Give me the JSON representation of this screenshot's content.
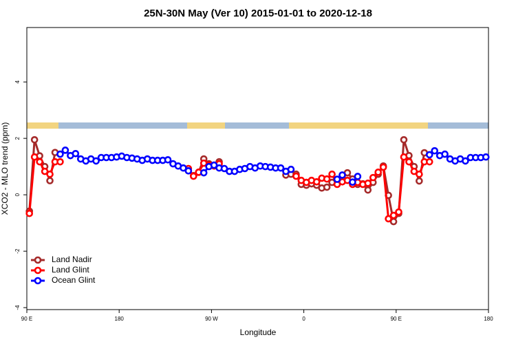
{
  "chart_data": {
    "type": "line",
    "title": "25N-30N May (Ver 10)   2015-01-01 to 2020-12-18",
    "x_label": "Longitude",
    "y_label": "XCO2 - MLO trend (ppm)",
    "xlim": [
      90,
      540
    ],
    "ylim": [
      -4.07,
      5.93
    ],
    "xticks": [
      {
        "value": 90,
        "label": "90 E"
      },
      180,
      {
        "value": 270,
        "label": "90 W"
      },
      {
        "value": 360,
        "label": "0"
      },
      {
        "value": 450,
        "label": "90 E"
      },
      {
        "value": 540,
        "label": "180"
      }
    ],
    "yticks": [
      -4,
      -2,
      0,
      2,
      4
    ],
    "legend": "lower left",
    "x": [
      92.5,
      97.5,
      102.5,
      107.5,
      112.5,
      117.5,
      122.5,
      127.5,
      132.5,
      137.5,
      142.5,
      147.5,
      152.5,
      157.5,
      162.5,
      167.5,
      172.5,
      177.5,
      182.5,
      187.5,
      192.5,
      197.5,
      202.5,
      207.5,
      212.5,
      217.5,
      222.5,
      227.5,
      232.5,
      237.5,
      242.5,
      247.5,
      252.5,
      257.5,
      262.5,
      267.5,
      272.5,
      277.5,
      282.5,
      287.5,
      292.5,
      297.5,
      302.5,
      307.5,
      312.5,
      317.5,
      322.5,
      327.5,
      332.5,
      337.5,
      342.5,
      347.5,
      352.5,
      357.5,
      362.5,
      367.5,
      372.5,
      377.5,
      382.5,
      387.5,
      392.5,
      397.5,
      402.5,
      407.5,
      412.5,
      417.5,
      422.5,
      427.5,
      432.5,
      437.5,
      442.5,
      447.5,
      452.5,
      457.5,
      462.5,
      467.5,
      472.5,
      477.5,
      482.5,
      487.5,
      492.5,
      497.5,
      502.5,
      507.5,
      512.5,
      517.5,
      522.5,
      527.5,
      532.5,
      537.5
    ],
    "series": [
      {
        "name": "Land Nadir",
        "color": "#a52a2a",
        "values": [
          -0.58,
          1.95,
          1.38,
          1.0,
          0.5,
          1.5,
          null,
          null,
          null,
          null,
          null,
          null,
          null,
          null,
          null,
          null,
          null,
          null,
          null,
          null,
          null,
          null,
          null,
          null,
          null,
          null,
          null,
          null,
          null,
          null,
          null,
          0.85,
          0.68,
          0.8,
          1.27,
          1.1,
          1.05,
          1.17,
          null,
          null,
          null,
          null,
          null,
          null,
          null,
          null,
          null,
          null,
          null,
          null,
          0.7,
          0.73,
          0.73,
          0.37,
          0.34,
          0.39,
          0.34,
          0.24,
          0.27,
          0.44,
          0.51,
          0.61,
          0.78,
          0.56,
          0.37,
          0.39,
          0.17,
          0.44,
          0.73,
          1.02,
          -0.02,
          -0.95,
          -0.66,
          1.95,
          1.39,
          1.0,
          0.49,
          1.49,
          null,
          null,
          null,
          null,
          null,
          null,
          null,
          null,
          null,
          null,
          null,
          null
        ]
      },
      {
        "name": "Land Glint",
        "color": "#ff0000",
        "values": [
          -0.66,
          1.34,
          1.17,
          0.83,
          0.73,
          1.17,
          1.17,
          null,
          null,
          null,
          null,
          null,
          null,
          null,
          null,
          null,
          null,
          null,
          null,
          null,
          null,
          null,
          null,
          null,
          null,
          null,
          null,
          null,
          null,
          null,
          null,
          0.93,
          0.66,
          0.8,
          1.12,
          1.05,
          1.02,
          1.1,
          null,
          null,
          null,
          null,
          null,
          null,
          null,
          null,
          null,
          null,
          null,
          null,
          null,
          null,
          0.66,
          0.51,
          0.44,
          0.51,
          0.46,
          0.59,
          0.56,
          0.73,
          0.37,
          0.46,
          0.51,
          0.37,
          0.44,
          0.37,
          0.41,
          0.61,
          0.8,
          0.98,
          -0.85,
          -0.73,
          -0.61,
          1.34,
          1.17,
          0.83,
          0.73,
          1.17,
          1.17,
          null,
          null,
          null,
          null,
          null,
          null,
          null,
          null,
          null,
          null,
          null
        ]
      },
      {
        "name": "Ocean Glint",
        "color": "#0000ff",
        "values": [
          null,
          null,
          null,
          null,
          null,
          null,
          1.44,
          1.58,
          1.39,
          1.46,
          1.27,
          1.2,
          1.27,
          1.2,
          1.32,
          1.32,
          1.32,
          1.34,
          1.37,
          1.32,
          1.3,
          1.27,
          1.22,
          1.27,
          1.22,
          1.22,
          1.22,
          1.24,
          1.1,
          1.02,
          0.95,
          0.85,
          null,
          null,
          0.78,
          1.0,
          1.05,
          0.95,
          0.93,
          0.83,
          0.83,
          0.9,
          0.93,
          1.0,
          0.95,
          1.02,
          1.0,
          0.98,
          0.95,
          0.95,
          0.83,
          0.9,
          null,
          null,
          null,
          null,
          null,
          null,
          null,
          null,
          0.55,
          0.7,
          null,
          0.45,
          0.65,
          null,
          null,
          null,
          null,
          null,
          null,
          null,
          null,
          null,
          null,
          null,
          null,
          null,
          1.42,
          1.56,
          1.39,
          1.44,
          1.27,
          1.2,
          1.27,
          1.2,
          1.32,
          1.32,
          1.32,
          1.34
        ]
      }
    ]
  }
}
